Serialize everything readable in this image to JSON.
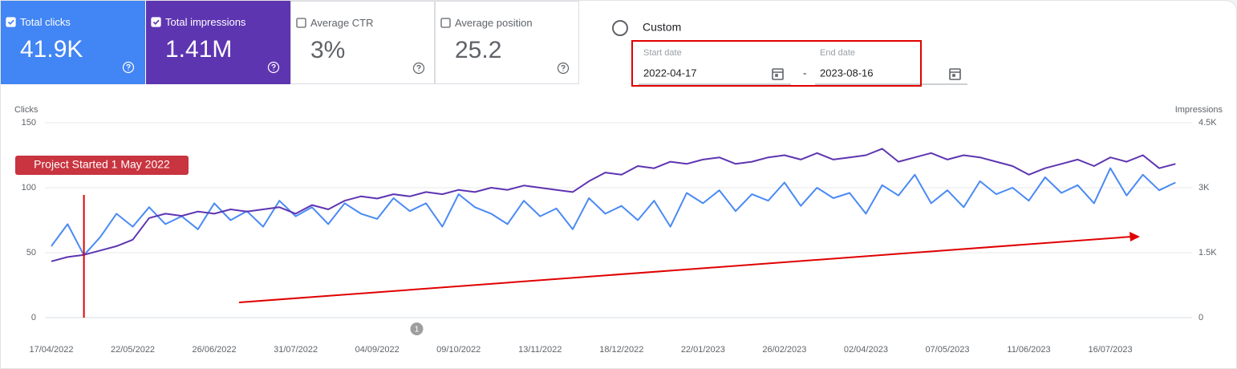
{
  "metrics": [
    {
      "label": "Total clicks",
      "value": "41.9K",
      "checked": true,
      "color": "#4285f4"
    },
    {
      "label": "Total impressions",
      "value": "1.41M",
      "checked": true,
      "color": "#5e35b1"
    },
    {
      "label": "Average CTR",
      "value": "3%",
      "checked": false,
      "color": "#ffffff"
    },
    {
      "label": "Average position",
      "value": "25.2",
      "checked": false,
      "color": "#ffffff"
    }
  ],
  "date_filter": {
    "option": "Custom",
    "start_label": "Start date",
    "start": "2022-04-17",
    "separator": "-",
    "end_label": "End date",
    "end": "2023-08-16"
  },
  "chart_data": {
    "type": "line",
    "y_label": "Clicks",
    "y2_label": "Impressions",
    "x": [
      "2022-04-17",
      "2022-04-24",
      "2022-05-01",
      "2022-05-08",
      "2022-05-15",
      "2022-05-22",
      "2022-05-29",
      "2022-06-05",
      "2022-06-12",
      "2022-06-19",
      "2022-06-26",
      "2022-07-03",
      "2022-07-10",
      "2022-07-17",
      "2022-07-24",
      "2022-07-31",
      "2022-08-07",
      "2022-08-14",
      "2022-08-21",
      "2022-08-28",
      "2022-09-04",
      "2022-09-11",
      "2022-09-18",
      "2022-09-25",
      "2022-10-02",
      "2022-10-09",
      "2022-10-16",
      "2022-10-23",
      "2022-10-30",
      "2022-11-06",
      "2022-11-13",
      "2022-11-20",
      "2022-11-27",
      "2022-12-04",
      "2022-12-11",
      "2022-12-18",
      "2022-12-25",
      "2023-01-01",
      "2023-01-08",
      "2023-01-15",
      "2023-01-22",
      "2023-01-29",
      "2023-02-05",
      "2023-02-12",
      "2023-02-19",
      "2023-02-26",
      "2023-03-05",
      "2023-03-12",
      "2023-03-19",
      "2023-03-26",
      "2023-04-02",
      "2023-04-09",
      "2023-04-16",
      "2023-04-23",
      "2023-04-30",
      "2023-05-07",
      "2023-05-14",
      "2023-05-21",
      "2023-05-28",
      "2023-06-04",
      "2023-06-11",
      "2023-06-18",
      "2023-06-25",
      "2023-07-02",
      "2023-07-09",
      "2023-07-16",
      "2023-07-23",
      "2023-07-30",
      "2023-08-06",
      "2023-08-13"
    ],
    "series": [
      {
        "color": "#4a8af4",
        "axis": "y",
        "values": [
          55,
          72,
          48,
          62,
          80,
          70,
          85,
          72,
          78,
          68,
          88,
          75,
          82,
          70,
          90,
          78,
          85,
          72,
          88,
          80,
          76,
          92,
          82,
          88,
          70,
          95,
          85,
          80,
          72,
          90,
          78,
          84,
          68,
          92,
          80,
          86,
          75,
          90,
          70,
          96,
          88,
          98,
          82,
          95,
          90,
          104,
          86,
          100,
          92,
          96,
          80,
          102,
          94,
          110,
          88,
          98,
          85,
          105,
          95,
          100,
          90,
          108,
          96,
          102,
          88,
          115,
          94,
          110,
          98,
          104
        ]
      },
      {
        "color": "#5e35b1",
        "axis": "y2",
        "values": [
          1300,
          1400,
          1450,
          1550,
          1650,
          1800,
          2300,
          2400,
          2350,
          2450,
          2400,
          2500,
          2450,
          2500,
          2550,
          2400,
          2600,
          2500,
          2700,
          2800,
          2750,
          2850,
          2800,
          2900,
          2850,
          2950,
          2900,
          3000,
          2950,
          3050,
          3000,
          2950,
          2900,
          3150,
          3350,
          3300,
          3500,
          3450,
          3600,
          3550,
          3650,
          3700,
          3550,
          3600,
          3700,
          3750,
          3650,
          3800,
          3650,
          3700,
          3750,
          3900,
          3600,
          3700,
          3800,
          3650,
          3750,
          3700,
          3600,
          3500,
          3300,
          3450,
          3550,
          3650,
          3500,
          3700,
          3600,
          3750,
          3450,
          3550
        ]
      }
    ],
    "xlim": [
      "2022-04-17",
      "2023-08-16"
    ],
    "xticks": [
      {
        "value": "2022-04-17",
        "label": "17/04/2022"
      },
      {
        "value": "2022-05-22",
        "label": "22/05/2022"
      },
      {
        "value": "2022-06-26",
        "label": "26/06/2022"
      },
      {
        "value": "2022-07-31",
        "label": "31/07/2022"
      },
      {
        "value": "2022-09-04",
        "label": "04/09/2022"
      },
      {
        "value": "2022-10-09",
        "label": "09/10/2022"
      },
      {
        "value": "2022-11-13",
        "label": "13/11/2022"
      },
      {
        "value": "2022-12-18",
        "label": "18/12/2022"
      },
      {
        "value": "2023-01-22",
        "label": "22/01/2023"
      },
      {
        "value": "2023-02-26",
        "label": "26/02/2023"
      },
      {
        "value": "2023-04-02",
        "label": "02/04/2023"
      },
      {
        "value": "2023-05-07",
        "label": "07/05/2023"
      },
      {
        "value": "2023-06-11",
        "label": "11/06/2023"
      },
      {
        "value": "2023-07-16",
        "label": "16/07/2023"
      }
    ],
    "ylim": [
      0,
      150
    ],
    "yticks": [
      0,
      50,
      100,
      150
    ],
    "y2lim": [
      0,
      4500
    ],
    "y2ticks": [
      0,
      {
        "value": 1500,
        "label": "1.5K"
      },
      {
        "value": 3000,
        "label": "3K"
      },
      {
        "value": 4500,
        "label": "4.5K"
      }
    ],
    "grid": true,
    "annotations": [
      {
        "text": "Project Started 1 May 2022",
        "x": "2022-05-01"
      },
      {
        "text": "1",
        "x": "2022-09-21"
      }
    ]
  }
}
